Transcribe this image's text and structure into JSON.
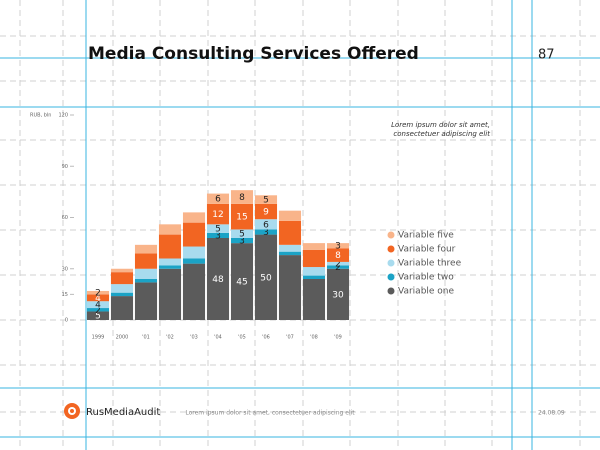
{
  "page_number": "87",
  "footer": {
    "logo": "RusMediaAudit",
    "text": "Lorem ipsum dolor sit amet, consectetuer adipiscing elit",
    "date": "24.08.09"
  },
  "chart_data": {
    "type": "stacked_bar",
    "title": "Media Consulting Services Offered",
    "y_label": "RUB, bln",
    "annotation": [
      "Lorem ipsum dolor sit amet,",
      "consectetuer adipiscing elit"
    ],
    "categories": [
      "1999",
      "2000",
      "'01",
      "'02",
      "'03",
      "'04",
      "'05",
      "'06",
      "'07",
      "'08",
      "'09"
    ],
    "ylim": [
      0,
      120
    ],
    "yticks": [
      0,
      15,
      30,
      60,
      90,
      120
    ],
    "series": [
      {
        "name": "Variable one",
        "color": "#5b5b5b",
        "values": [
          5,
          14,
          22,
          30,
          33,
          48,
          45,
          50,
          38,
          24,
          30
        ],
        "value_labels": [
          5,
          null,
          null,
          null,
          null,
          48,
          45,
          50,
          null,
          null,
          30
        ]
      },
      {
        "name": "Variable two",
        "color": "#1ba3c6",
        "values": [
          2,
          2,
          2,
          2,
          3,
          3,
          3,
          3,
          2,
          2,
          2
        ],
        "value_labels": [
          2,
          null,
          null,
          null,
          null,
          3,
          3,
          3,
          null,
          null,
          2
        ]
      },
      {
        "name": "Variable three",
        "color": "#a8dbee",
        "values": [
          4,
          5,
          6,
          4,
          7,
          5,
          5,
          6,
          4,
          5,
          2
        ],
        "value_labels": [
          4,
          null,
          null,
          null,
          null,
          5,
          5,
          6,
          null,
          null,
          2
        ]
      },
      {
        "name": "Variable four",
        "color": "#f26522",
        "values": [
          4,
          7,
          9,
          14,
          14,
          12,
          15,
          9,
          14,
          10,
          8
        ],
        "value_labels": [
          4,
          null,
          null,
          null,
          null,
          12,
          15,
          9,
          null,
          null,
          8
        ]
      },
      {
        "name": "Variable five",
        "color": "#f9b48a",
        "values": [
          2,
          2,
          5,
          6,
          6,
          6,
          8,
          5,
          6,
          4,
          3
        ],
        "value_labels": [
          2,
          null,
          null,
          null,
          null,
          6,
          8,
          5,
          null,
          null,
          3
        ]
      }
    ]
  }
}
